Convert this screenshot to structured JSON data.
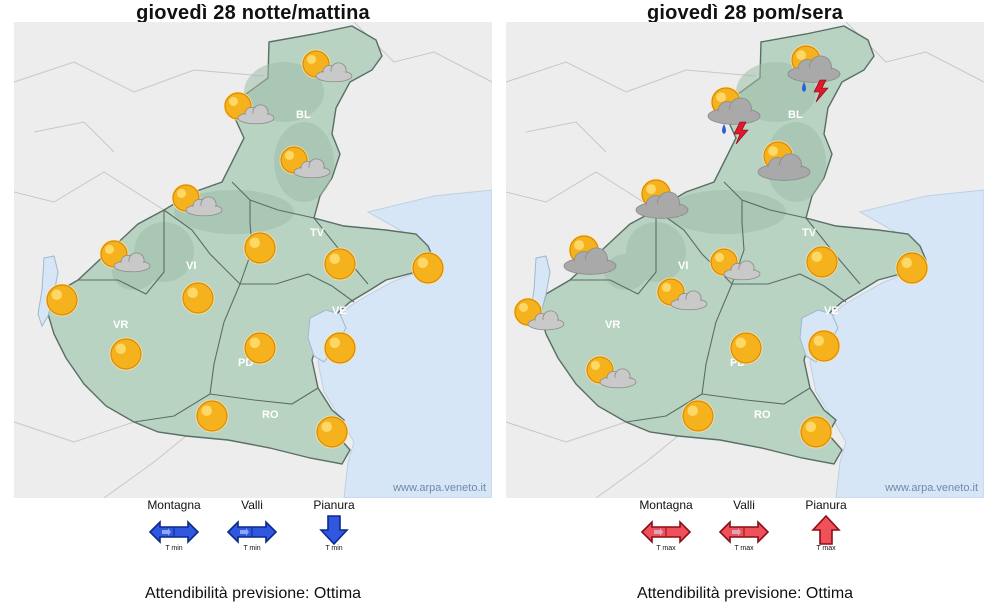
{
  "panels": [
    {
      "title": "giovedì 28 notte/mattina",
      "watermark": "www.arpa.veneto.it",
      "provinces": [
        "BL",
        "TV",
        "VI",
        "VR",
        "VE",
        "PD",
        "RO"
      ],
      "icons": [
        {
          "name": "sun-cloud-icon",
          "kind": "sun-cloud"
        },
        {
          "name": "sun-cloud-icon",
          "kind": "sun-cloud"
        },
        {
          "name": "sun-cloud-icon",
          "kind": "sun-cloud"
        },
        {
          "name": "sun-cloud-icon",
          "kind": "sun-cloud"
        },
        {
          "name": "sun-cloud-icon",
          "kind": "sun-cloud"
        },
        {
          "name": "sun-icon",
          "kind": "sun"
        },
        {
          "name": "sun-icon",
          "kind": "sun"
        },
        {
          "name": "sun-icon",
          "kind": "sun"
        },
        {
          "name": "sun-icon",
          "kind": "sun"
        },
        {
          "name": "sun-icon",
          "kind": "sun"
        },
        {
          "name": "sun-icon",
          "kind": "sun"
        },
        {
          "name": "sun-icon",
          "kind": "sun"
        },
        {
          "name": "sun-icon",
          "kind": "sun"
        },
        {
          "name": "sun-icon",
          "kind": "sun"
        },
        {
          "name": "sun-icon",
          "kind": "sun"
        }
      ],
      "legend": [
        {
          "label": "Montagna",
          "sub": "T min",
          "arrow": "stable",
          "color": "#2f57e0"
        },
        {
          "label": "Valli",
          "sub": "T min",
          "arrow": "stable",
          "color": "#2f57e0"
        },
        {
          "label": "Pianura",
          "sub": "T min",
          "arrow": "down",
          "color": "#2f57e0"
        }
      ],
      "reliability": "Attendibilità previsione: Ottima"
    },
    {
      "title": "giovedì 28 pom/sera",
      "watermark": "www.arpa.veneto.it",
      "provinces": [
        "BL",
        "TV",
        "VI",
        "VR",
        "VE",
        "PD",
        "RO"
      ],
      "icons": [
        {
          "name": "thunderstorm-icon",
          "kind": "storm"
        },
        {
          "name": "thunderstorm-icon",
          "kind": "storm"
        },
        {
          "name": "sun-cloud-icon",
          "kind": "cloudy-sun"
        },
        {
          "name": "sun-cloud-icon",
          "kind": "cloudy-sun"
        },
        {
          "name": "sun-cloud-icon",
          "kind": "cloudy-sun"
        },
        {
          "name": "sun-cloud-icon",
          "kind": "sun-cloud"
        },
        {
          "name": "sun-cloud-icon",
          "kind": "sun-cloud"
        },
        {
          "name": "sun-cloud-icon",
          "kind": "sun-cloud"
        },
        {
          "name": "sun-cloud-icon",
          "kind": "sun-cloud"
        },
        {
          "name": "sun-icon",
          "kind": "sun"
        },
        {
          "name": "sun-icon",
          "kind": "sun"
        },
        {
          "name": "sun-icon",
          "kind": "sun"
        },
        {
          "name": "sun-icon",
          "kind": "sun"
        },
        {
          "name": "sun-icon",
          "kind": "sun"
        },
        {
          "name": "sun-icon",
          "kind": "sun"
        }
      ],
      "legend": [
        {
          "label": "Montagna",
          "sub": "T max",
          "arrow": "stable",
          "color": "#f0505a"
        },
        {
          "label": "Valli",
          "sub": "T max",
          "arrow": "stable",
          "color": "#f0505a"
        },
        {
          "label": "Pianura",
          "sub": "T max",
          "arrow": "up",
          "color": "#f0505a"
        }
      ],
      "reliability": "Attendibilità previsione: Ottima"
    }
  ],
  "colors": {
    "region": "#b9d3c2",
    "surroundings": "#ededed",
    "sea": "#d7e6f6",
    "border": "#596e66",
    "sun": "#f6b21c",
    "cloud": "#b8b8b8"
  }
}
